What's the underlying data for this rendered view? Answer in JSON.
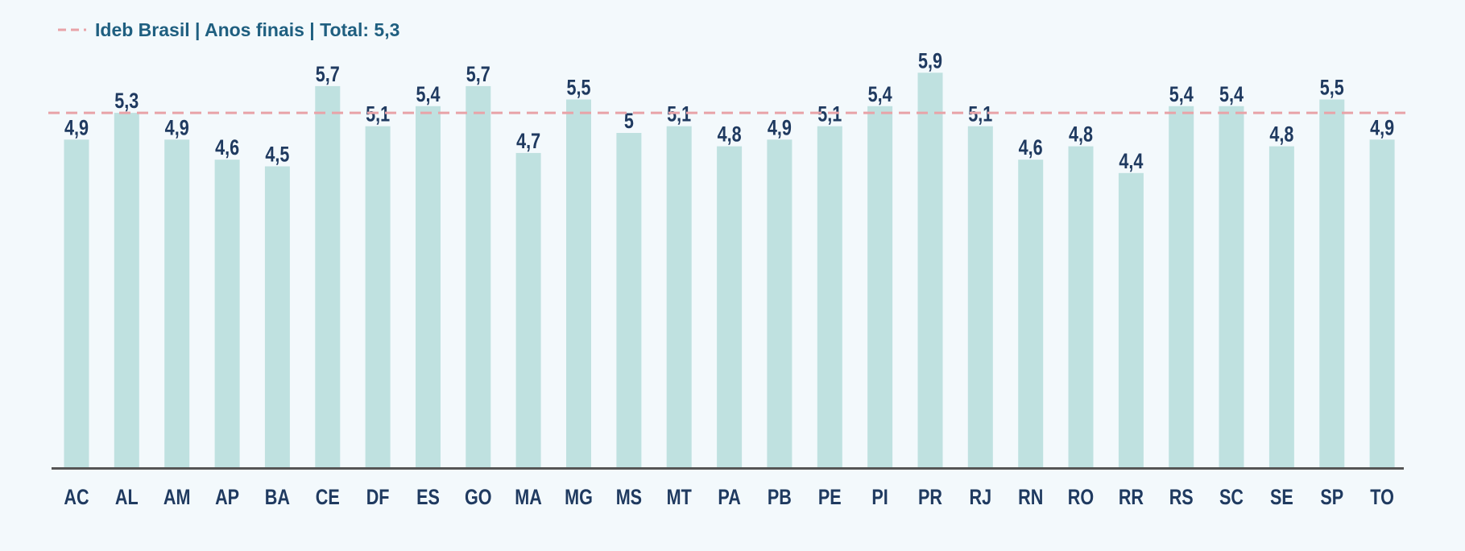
{
  "legend": {
    "label": "Ideb Brasil | Anos finais | Total: 5,3",
    "reference_value": 5.3
  },
  "colors": {
    "background": "#f3f9fc",
    "bar": "#bfe1e0",
    "reference_line": "#e8a3a8",
    "label_text": "#1f3a60",
    "legend_text": "#1f5f80",
    "axis": "#555555"
  },
  "chart_data": {
    "type": "bar",
    "categories": [
      "AC",
      "AL",
      "AM",
      "AP",
      "BA",
      "CE",
      "DF",
      "ES",
      "GO",
      "MA",
      "MG",
      "MS",
      "MT",
      "PA",
      "PB",
      "PE",
      "PI",
      "PR",
      "RJ",
      "RN",
      "RO",
      "RR",
      "RS",
      "SC",
      "SE",
      "SP",
      "TO"
    ],
    "values": [
      4.9,
      5.3,
      4.9,
      4.6,
      4.5,
      5.7,
      5.1,
      5.4,
      5.7,
      4.7,
      5.5,
      5,
      5.1,
      4.8,
      4.9,
      5.1,
      5.4,
      5.9,
      5.1,
      4.6,
      4.8,
      4.4,
      5.4,
      5.4,
      4.8,
      5.5,
      4.9
    ],
    "value_labels": [
      "4,9",
      "5,3",
      "4,9",
      "4,6",
      "4,5",
      "5,7",
      "5,1",
      "5,4",
      "5,7",
      "4,7",
      "5,5",
      "5",
      "5,1",
      "4,8",
      "4,9",
      "5,1",
      "5,4",
      "5,9",
      "5,1",
      "4,6",
      "4,8",
      "4,4",
      "5,4",
      "5,4",
      "4,8",
      "5,5",
      "4,9"
    ],
    "reference_line": {
      "value": 5.3,
      "style": "dashed"
    },
    "title": "",
    "xlabel": "",
    "ylabel": "",
    "y_axis_visible": false,
    "grid": false,
    "legend_position": "top-left"
  }
}
